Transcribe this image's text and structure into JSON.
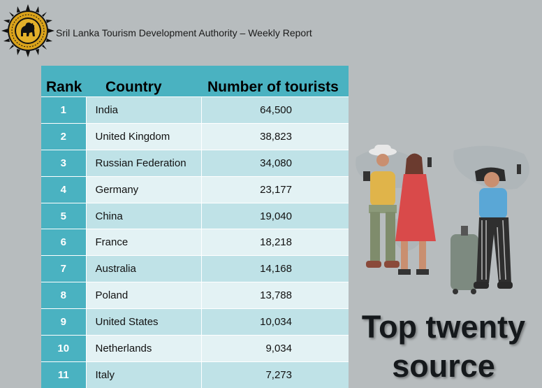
{
  "header": {
    "title": "Sril Lanka Tourism Development Authority – Weekly Report",
    "logo": {
      "icon": "lion-seal-icon",
      "seal_text": "SRI LANKA TOURISM DEVELOPMENT AUTHORITY"
    }
  },
  "table": {
    "columns": [
      "Rank",
      "Country",
      "Number of tourists"
    ],
    "rows": [
      {
        "rank": "1",
        "country": "India",
        "tourists": "64,500"
      },
      {
        "rank": "2",
        "country": "United Kingdom",
        "tourists": "38,823"
      },
      {
        "rank": "3",
        "country": "Russian Federation",
        "tourists": "34,080"
      },
      {
        "rank": "4",
        "country": "Germany",
        "tourists": "23,177"
      },
      {
        "rank": "5",
        "country": "China",
        "tourists": "19,040"
      },
      {
        "rank": "6",
        "country": "France",
        "tourists": "18,218"
      },
      {
        "rank": "7",
        "country": "Australia",
        "tourists": "14,168"
      },
      {
        "rank": "8",
        "country": "Poland",
        "tourists": "13,788"
      },
      {
        "rank": "9",
        "country": "United States",
        "tourists": "10,034"
      },
      {
        "rank": "10",
        "country": "Netherlands",
        "tourists": "9,034"
      },
      {
        "rank": "11",
        "country": "Italy",
        "tourists": "7,273"
      }
    ]
  },
  "side_panel": {
    "illustration": "tourists-illustration-icon",
    "title_line1": "Top twenty",
    "title_line2": "source"
  },
  "colors": {
    "background": "#b7bcbe",
    "header_teal": "#4ab2c1",
    "row_light": "#e3f2f4",
    "row_mid": "#bfe2e7",
    "seal_gold": "#d9a21b"
  }
}
